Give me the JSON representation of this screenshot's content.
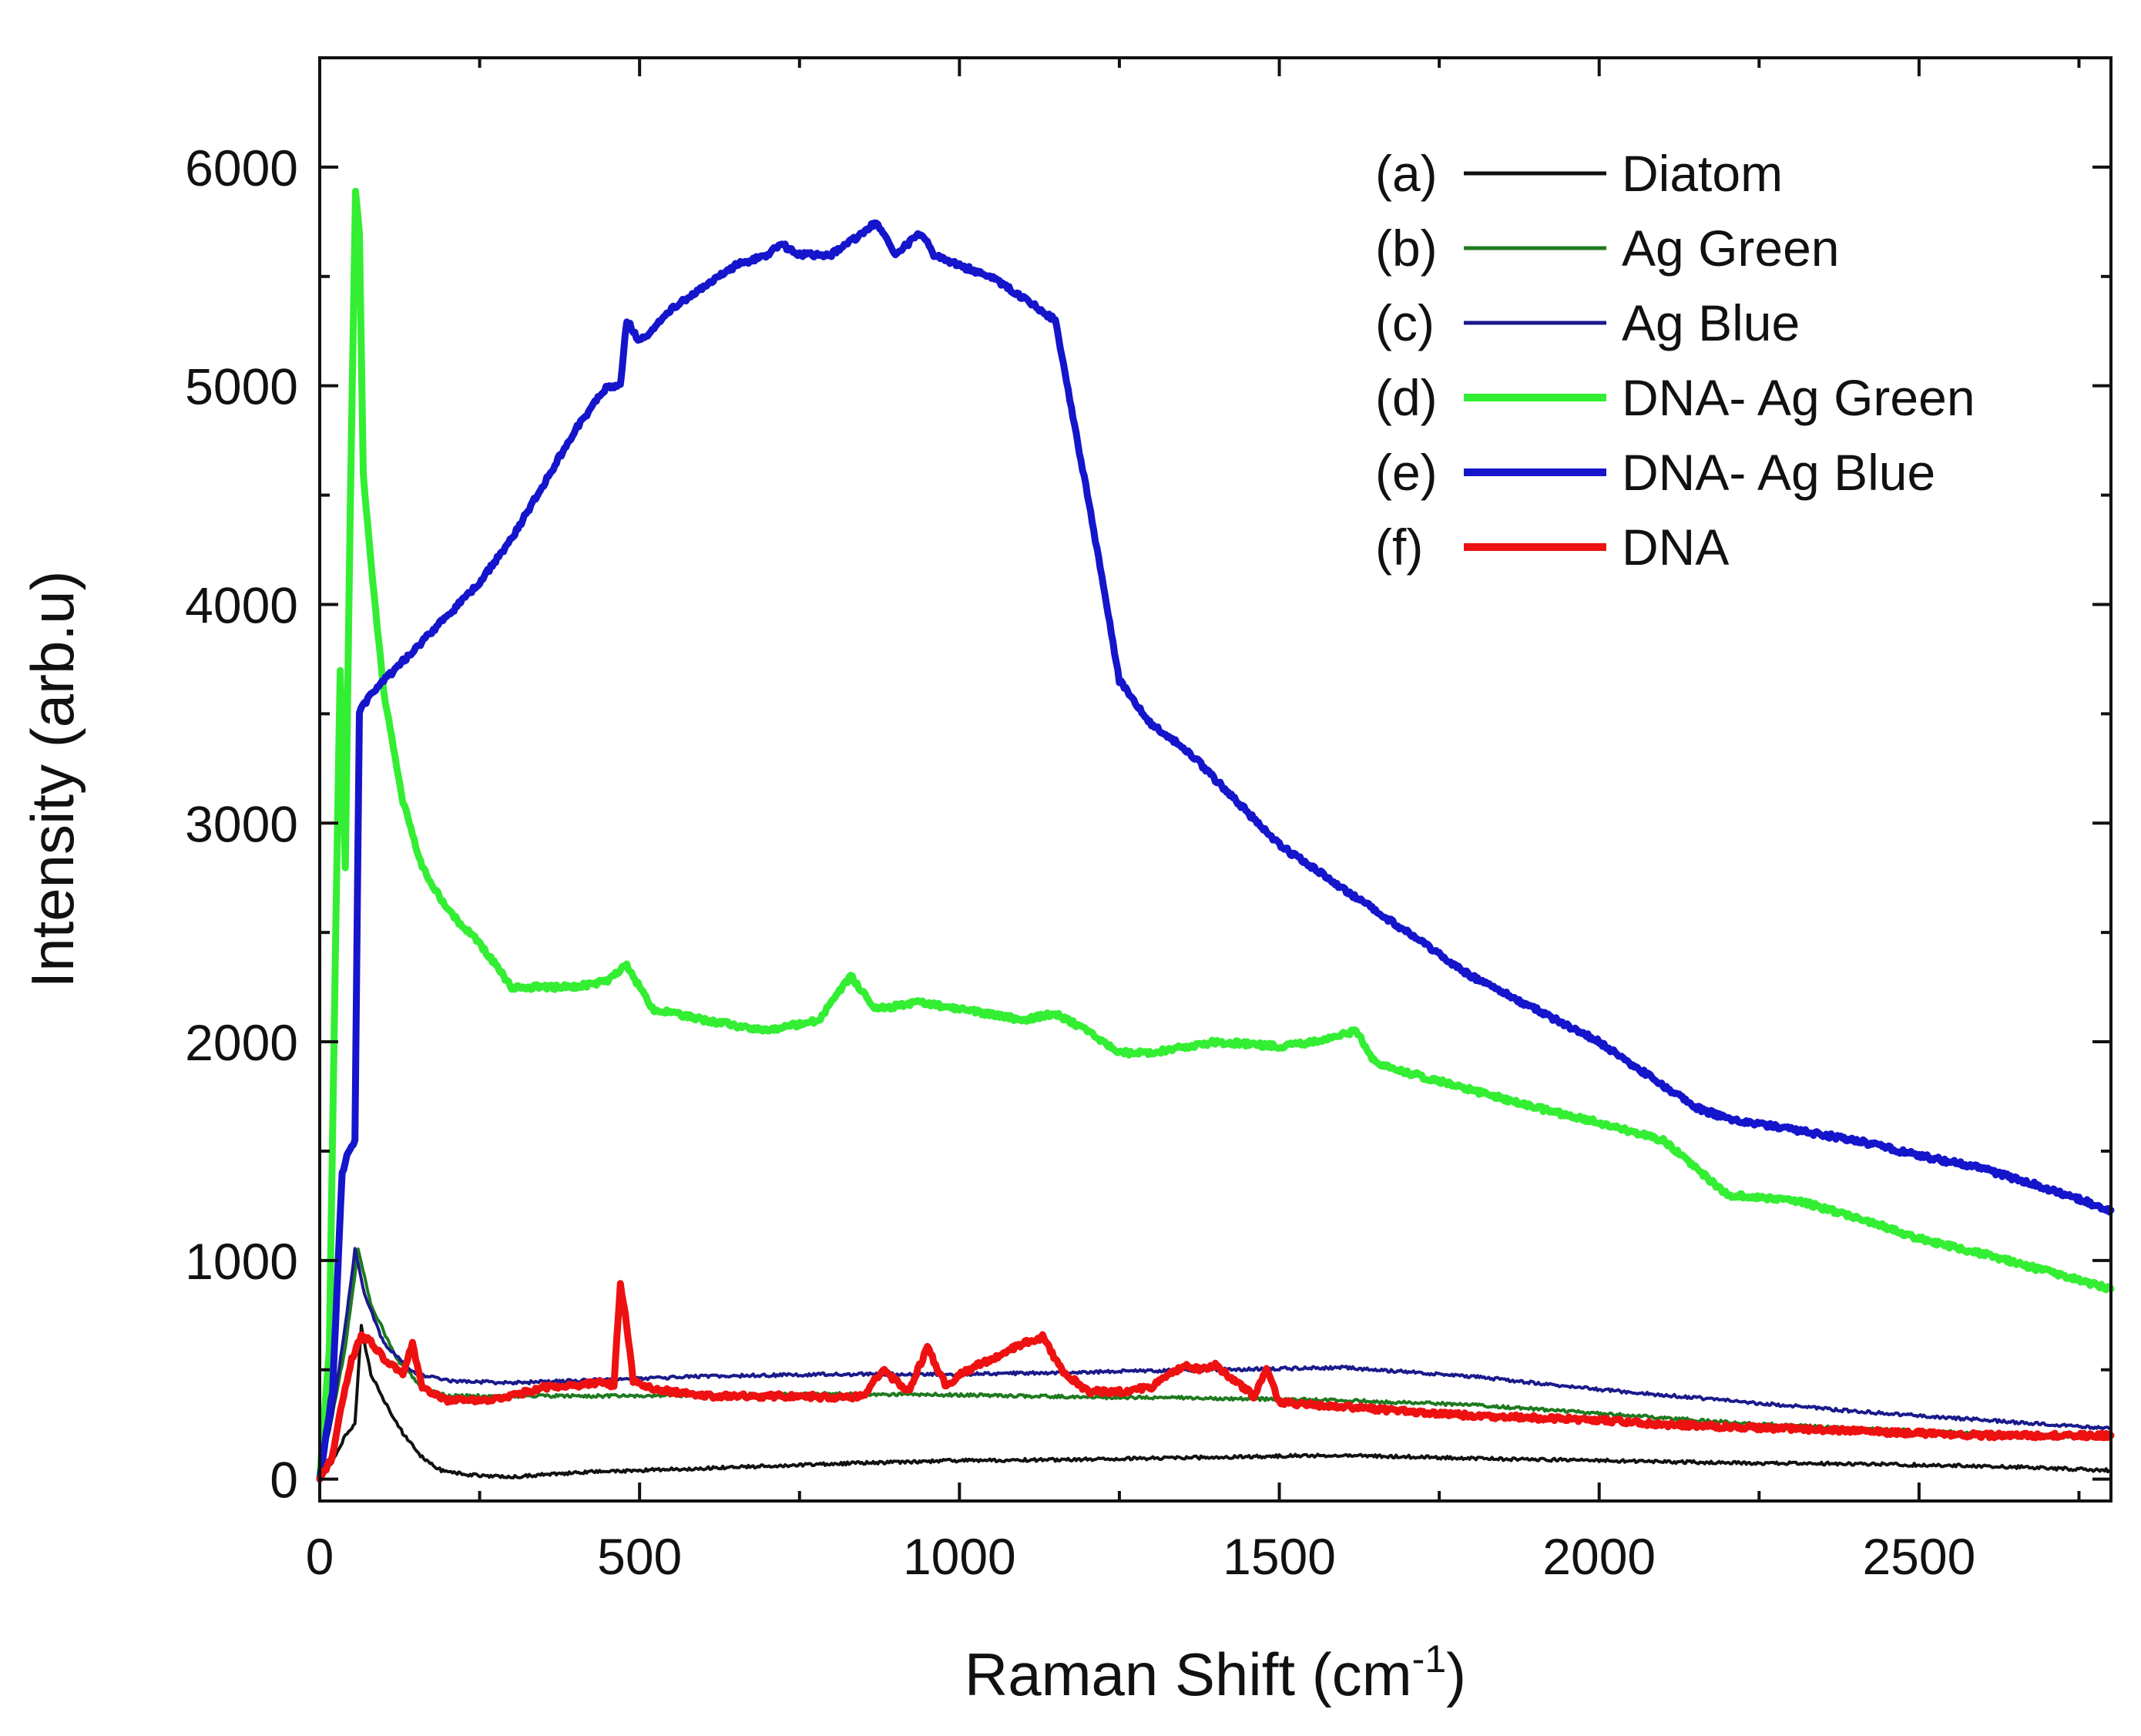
{
  "chart_data": {
    "type": "line",
    "title": "",
    "xlabel": "Raman Shift (cm",
    "xlabel_sup": "-1",
    "xlabel_close": ")",
    "ylabel": "Intensity (arb.u)",
    "xlim": [
      0,
      2800
    ],
    "ylim": [
      -100,
      6500
    ],
    "x_ticks": [
      0,
      500,
      1000,
      1500,
      2000,
      2500
    ],
    "x_tick_labels": [
      "0",
      "500",
      "1000",
      "1500",
      "2000",
      "2500"
    ],
    "y_ticks": [
      0,
      1000,
      2000,
      3000,
      4000,
      5000,
      6000
    ],
    "y_tick_labels": [
      "0",
      "1000",
      "2000",
      "3000",
      "4000",
      "5000",
      "6000"
    ],
    "grid": false,
    "legend_position": "top-right",
    "series": [
      {
        "tag": "(a)",
        "name": "Diatom",
        "color": "#111111",
        "linewidth": "thin",
        "x": [
          0,
          20,
          40,
          55,
          65,
          80,
          100,
          130,
          160,
          190,
          230,
          300,
          400,
          600,
          800,
          1000,
          1200,
          1400,
          1600,
          1800,
          2000,
          2200,
          2400,
          2600,
          2800
        ],
        "y": [
          0,
          80,
          200,
          250,
          700,
          480,
          360,
          210,
          100,
          40,
          20,
          10,
          30,
          50,
          70,
          85,
          90,
          100,
          110,
          95,
          85,
          75,
          70,
          60,
          40
        ]
      },
      {
        "tag": "(b)",
        "name": "Ag Green",
        "color": "#1f7a1f",
        "linewidth": "thin",
        "x": [
          0,
          20,
          40,
          60,
          80,
          120,
          160,
          200,
          300,
          400,
          500,
          600,
          800,
          1000,
          1200,
          1400,
          1600,
          1800,
          2000,
          2200,
          2400,
          2600,
          2800
        ],
        "y": [
          0,
          300,
          600,
          1050,
          800,
          550,
          420,
          380,
          380,
          380,
          380,
          385,
          390,
          385,
          375,
          370,
          360,
          340,
          300,
          260,
          230,
          210,
          190
        ]
      },
      {
        "tag": "(c)",
        "name": "Ag Blue",
        "color": "#1a1a8c",
        "linewidth": "thin",
        "x": [
          0,
          20,
          40,
          55,
          70,
          100,
          150,
          200,
          300,
          400,
          500,
          600,
          800,
          1000,
          1200,
          1400,
          1600,
          1800,
          2000,
          2200,
          2400,
          2600,
          2800
        ],
        "y": [
          0,
          300,
          700,
          1050,
          850,
          620,
          480,
          450,
          440,
          450,
          460,
          470,
          480,
          480,
          490,
          500,
          510,
          470,
          410,
          360,
          310,
          270,
          230
        ]
      },
      {
        "tag": "(d)",
        "name": "DNA- Ag Green",
        "color": "#33ee33",
        "linewidth": "thick",
        "x": [
          0,
          15,
          25,
          32,
          40,
          48,
          56,
          62,
          68,
          80,
          100,
          130,
          160,
          200,
          250,
          300,
          350,
          400,
          450,
          480,
          520,
          600,
          700,
          780,
          830,
          870,
          940,
          1000,
          1100,
          1150,
          1200,
          1250,
          1300,
          1400,
          1500,
          1560,
          1620,
          1650,
          1800,
          1900,
          2000,
          2100,
          2200,
          2300,
          2400,
          2500,
          2600,
          2700,
          2800
        ],
        "y": [
          0,
          600,
          2500,
          3700,
          2800,
          4500,
          5900,
          5700,
          4600,
          4200,
          3600,
          3100,
          2800,
          2600,
          2450,
          2250,
          2250,
          2250,
          2280,
          2350,
          2150,
          2100,
          2050,
          2100,
          2300,
          2150,
          2180,
          2150,
          2100,
          2130,
          2050,
          1950,
          1950,
          2000,
          1980,
          2000,
          2050,
          1900,
          1780,
          1700,
          1630,
          1550,
          1300,
          1280,
          1200,
          1100,
          1030,
          950,
          870
        ]
      },
      {
        "tag": "(e)",
        "name": "DNA- Ag Blue",
        "color": "#1515cc",
        "linewidth": "thick",
        "x": [
          0,
          20,
          35,
          45,
          55,
          62,
          70,
          100,
          150,
          200,
          250,
          300,
          350,
          400,
          450,
          470,
          480,
          490,
          500,
          550,
          600,
          650,
          700,
          720,
          750,
          800,
          850,
          870,
          900,
          940,
          960,
          1000,
          1050,
          1100,
          1150,
          1200,
          1230,
          1250,
          1300,
          1350,
          1400,
          1450,
          1500,
          1600,
          1700,
          1800,
          1900,
          2000,
          2100,
          2150,
          2200,
          2300,
          2400,
          2500,
          2600,
          2700,
          2800
        ],
        "y": [
          0,
          400,
          1400,
          1500,
          1550,
          3500,
          3550,
          3650,
          3800,
          3950,
          4100,
          4300,
          4550,
          4800,
          5000,
          5000,
          5300,
          5250,
          5200,
          5350,
          5450,
          5550,
          5600,
          5650,
          5600,
          5600,
          5700,
          5750,
          5600,
          5700,
          5600,
          5550,
          5500,
          5400,
          5300,
          4500,
          4000,
          3650,
          3450,
          3350,
          3200,
          3050,
          2900,
          2700,
          2500,
          2300,
          2150,
          2000,
          1800,
          1700,
          1650,
          1600,
          1550,
          1480,
          1420,
          1330,
          1230
        ]
      },
      {
        "tag": "(f)",
        "name": "DNA",
        "color": "#ee1111",
        "linewidth": "thick",
        "x": [
          0,
          20,
          35,
          50,
          65,
          80,
          100,
          130,
          145,
          160,
          200,
          250,
          300,
          350,
          400,
          440,
          460,
          470,
          480,
          490,
          500,
          550,
          600,
          650,
          700,
          760,
          800,
          850,
          880,
          920,
          950,
          980,
          1000,
          1050,
          1100,
          1130,
          1160,
          1200,
          1250,
          1300,
          1350,
          1380,
          1400,
          1430,
          1460,
          1480,
          1500,
          1600,
          1700,
          1800,
          1900,
          2000,
          2100,
          2200,
          2300,
          2400,
          2500,
          2600,
          2700,
          2800
        ],
        "y": [
          0,
          100,
          350,
          550,
          650,
          630,
          550,
          480,
          620,
          420,
          360,
          360,
          380,
          420,
          430,
          440,
          430,
          900,
          700,
          450,
          430,
          400,
          380,
          380,
          380,
          380,
          370,
          380,
          500,
          400,
          600,
          420,
          480,
          550,
          620,
          650,
          500,
          400,
          400,
          420,
          520,
          500,
          520,
          450,
          380,
          500,
          350,
          330,
          310,
          290,
          280,
          270,
          250,
          240,
          230,
          220,
          210,
          200,
          200,
          200
        ]
      }
    ]
  }
}
